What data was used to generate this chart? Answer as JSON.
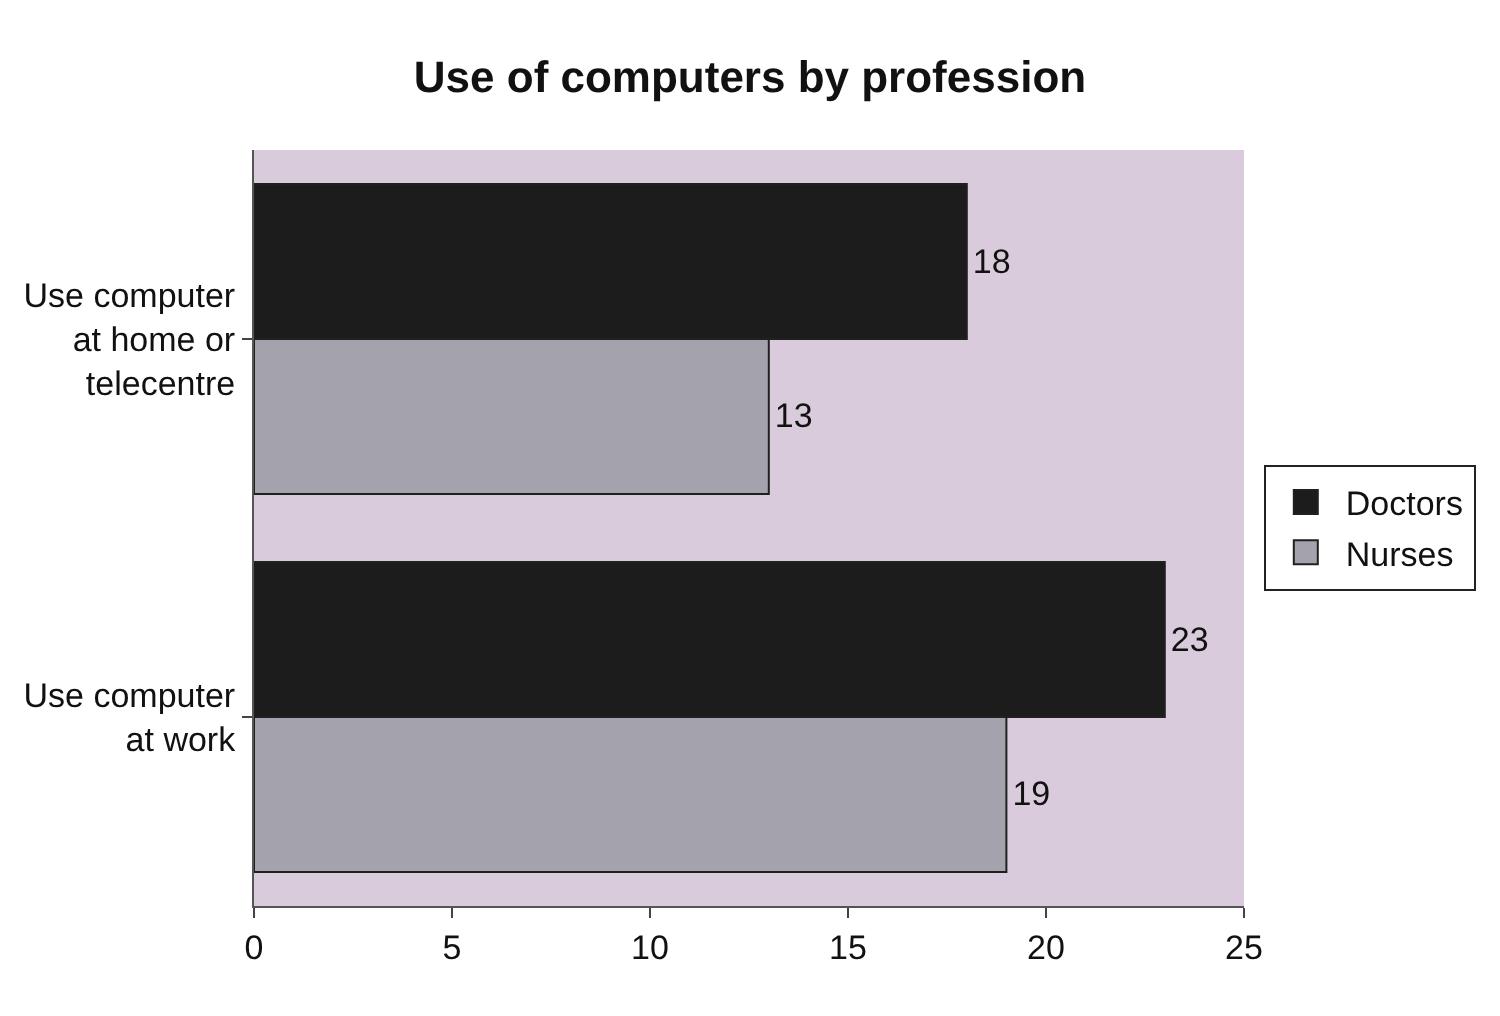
{
  "chart_data": {
    "type": "bar",
    "title": "Use of computers by profession",
    "orientation": "horizontal",
    "categories": [
      "Use computer at home or telecentre",
      "Use computer at work"
    ],
    "series": [
      {
        "name": "Doctors",
        "color": "#1c1c1c",
        "values": [
          18,
          23
        ]
      },
      {
        "name": "Nurses",
        "color": "#a4a2ac",
        "values": [
          13,
          19
        ]
      }
    ],
    "xlim": [
      0,
      25
    ],
    "xticks": [
      0,
      5,
      10,
      15,
      20,
      25
    ],
    "grid": false,
    "legend": "right",
    "data_labels": true
  }
}
